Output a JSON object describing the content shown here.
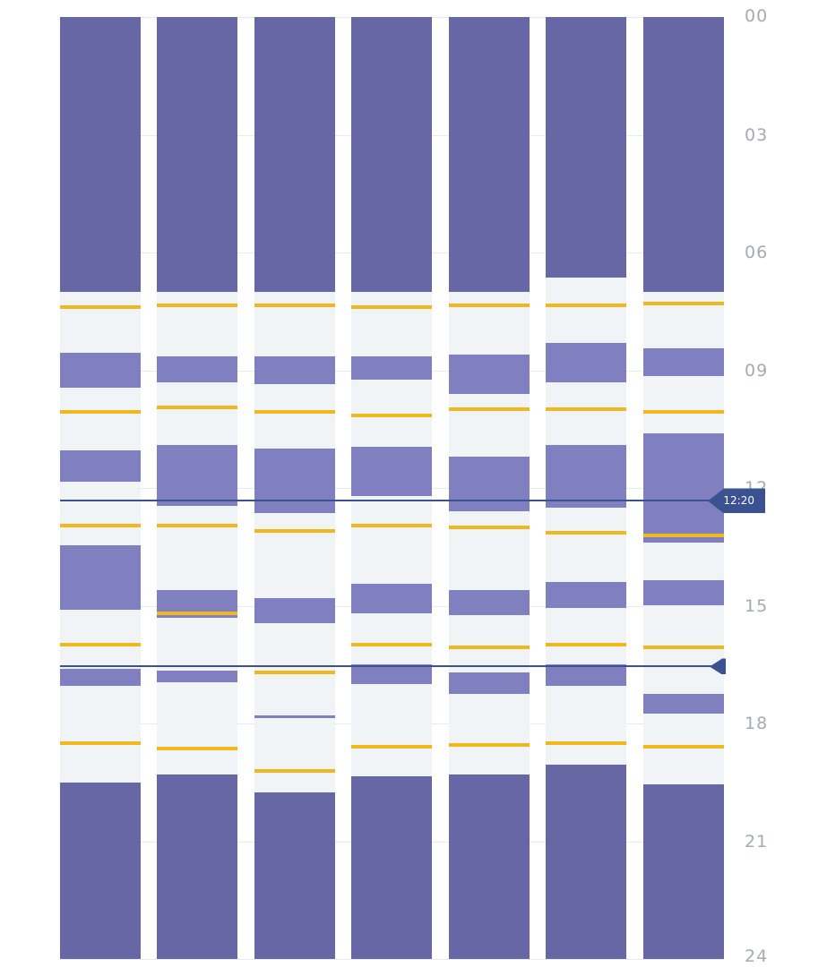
{
  "axis": {
    "hour_labels": [
      "00",
      "03",
      "06",
      "09",
      "12",
      "15",
      "18",
      "21",
      "24"
    ]
  },
  "markers": {
    "current_time_label": "12:20",
    "current_time_hours": 12.33,
    "second_marker_hours": 16.55
  },
  "colors": {
    "night": "#6767a5",
    "period": "#8080c1",
    "meal": "#f0b81c",
    "background": "#f1f4f7",
    "marker": "#3a5292"
  },
  "days": [
    {
      "night_end": 7.0,
      "night_start": 19.5,
      "periods": [
        [
          8.55,
          9.45
        ],
        [
          11.05,
          11.85
        ],
        [
          13.45,
          15.1
        ],
        [
          16.6,
          17.05
        ]
      ],
      "meals": [
        7.4,
        10.05,
        12.95,
        16.0,
        18.5
      ]
    },
    {
      "night_end": 7.0,
      "night_start": 19.3,
      "periods": [
        [
          8.65,
          9.3
        ],
        [
          10.9,
          12.45
        ],
        [
          14.6,
          15.3
        ],
        [
          16.65,
          16.95
        ]
      ],
      "meals": [
        7.35,
        9.95,
        12.95,
        15.2,
        18.65
      ]
    },
    {
      "night_end": 7.0,
      "night_start": 19.75,
      "periods": [
        [
          8.65,
          9.35
        ],
        [
          11.0,
          12.65
        ],
        [
          14.8,
          15.45
        ],
        [
          17.8,
          17.85
        ]
      ],
      "meals": [
        7.35,
        10.05,
        13.1,
        16.7,
        19.2
      ]
    },
    {
      "night_end": 7.0,
      "night_start": 19.35,
      "periods": [
        [
          8.65,
          9.25
        ],
        [
          10.95,
          12.2
        ],
        [
          14.45,
          15.2
        ],
        [
          16.5,
          17.0
        ]
      ],
      "meals": [
        7.4,
        10.15,
        12.95,
        16.0,
        18.6
      ]
    },
    {
      "night_end": 7.0,
      "night_start": 19.3,
      "periods": [
        [
          8.6,
          9.6
        ],
        [
          11.2,
          12.6
        ],
        [
          14.6,
          15.25
        ],
        [
          16.7,
          17.25
        ]
      ],
      "meals": [
        7.35,
        10.0,
        13.0,
        16.05,
        18.55
      ]
    },
    {
      "night_end": 6.65,
      "night_start": 19.05,
      "periods": [
        [
          8.3,
          9.3
        ],
        [
          10.9,
          12.5
        ],
        [
          14.4,
          15.05
        ],
        [
          16.5,
          17.05
        ]
      ],
      "meals": [
        7.35,
        10.0,
        13.15,
        16.0,
        18.5
      ]
    },
    {
      "night_end": 7.0,
      "night_start": 19.55,
      "periods": [
        [
          8.45,
          9.15
        ],
        [
          10.6,
          13.4
        ],
        [
          14.35,
          15.0
        ],
        [
          17.25,
          17.75
        ]
      ],
      "meals": [
        7.3,
        10.05,
        13.2,
        16.05,
        18.6
      ]
    }
  ]
}
